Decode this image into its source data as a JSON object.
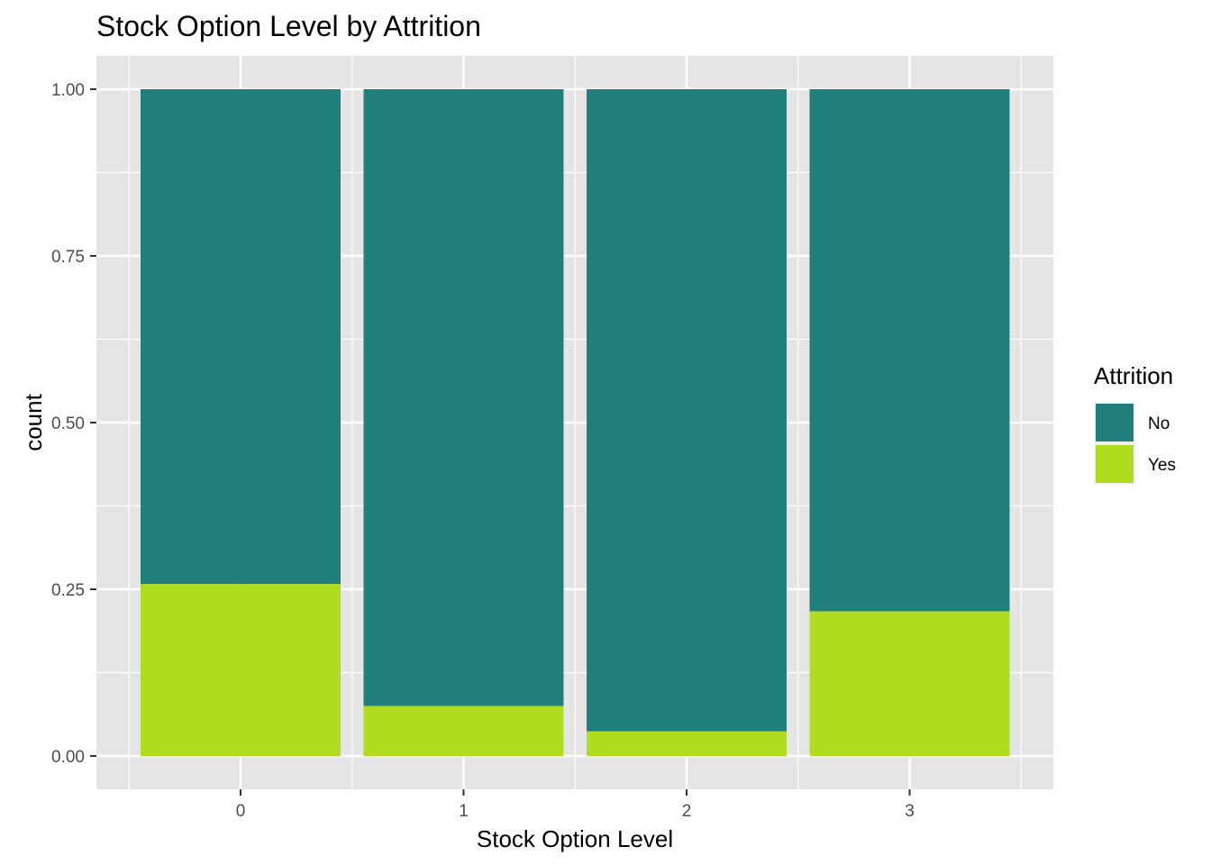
{
  "chart_data": {
    "type": "bar",
    "stacked": true,
    "position": "fill",
    "title": "Stock Option Level by Attrition",
    "xlabel": "Stock Option Level",
    "ylabel": "count",
    "categories": [
      "0",
      "1",
      "2",
      "3"
    ],
    "ylim": [
      0,
      1
    ],
    "yticks": [
      "0.00",
      "0.25",
      "0.50",
      "0.75",
      "1.00"
    ],
    "yticks_values": [
      0,
      0.25,
      0.5,
      0.75,
      1.0
    ],
    "grid": true,
    "legend": {
      "title": "Attrition",
      "placement": "right",
      "entries": [
        "No",
        "Yes"
      ]
    },
    "series": [
      {
        "name": "No",
        "color": "#21807b",
        "values": [
          0.742,
          0.925,
          0.963,
          0.783
        ]
      },
      {
        "name": "Yes",
        "color": "#b0dd1f",
        "values": [
          0.258,
          0.075,
          0.037,
          0.217
        ]
      }
    ],
    "colors": {
      "panel": "#e5e5e5",
      "grid": "#ffffff",
      "tick": "#333333"
    }
  }
}
